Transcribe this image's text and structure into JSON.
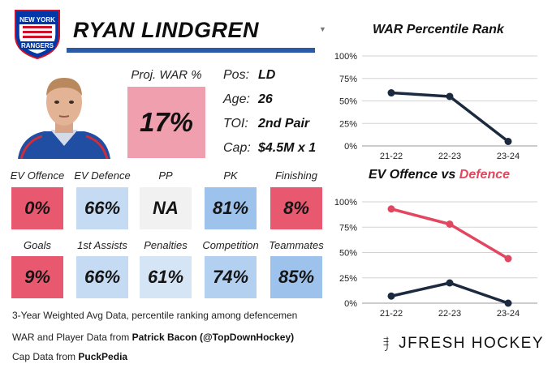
{
  "team": {
    "logo_line1": "NEW YORK",
    "logo_line2": "RANGERS",
    "primary": "#0038a8",
    "secondary": "#ce1126"
  },
  "player": {
    "name": "RYAN LINDGREN",
    "proj_war_label": "Proj. WAR %",
    "proj_war": "17%",
    "info": [
      {
        "label": "Pos:",
        "value": "LD"
      },
      {
        "label": "Age:",
        "value": "26"
      },
      {
        "label": "TOI:",
        "value": "2nd Pair"
      },
      {
        "label": "Cap:",
        "value": "$4.5M x 1"
      }
    ]
  },
  "stats": [
    {
      "label": "EV Offence",
      "value": "0%",
      "color": "#e8586f"
    },
    {
      "label": "EV Defence",
      "value": "66%",
      "color": "#c5dbf3"
    },
    {
      "label": "PP",
      "value": "NA",
      "color": "#f1f1f1"
    },
    {
      "label": "PK",
      "value": "81%",
      "color": "#9dc3ec"
    },
    {
      "label": "Finishing",
      "value": "8%",
      "color": "#e8586f"
    },
    {
      "label": "Goals",
      "value": "9%",
      "color": "#e8586f"
    },
    {
      "label": "1st Assists",
      "value": "66%",
      "color": "#c5dbf3"
    },
    {
      "label": "Penalties",
      "value": "61%",
      "color": "#d6e5f6"
    },
    {
      "label": "Competition",
      "value": "74%",
      "color": "#b3d0f0"
    },
    {
      "label": "Teammates",
      "value": "85%",
      "color": "#9dc3ec"
    }
  ],
  "notes": {
    "line1": "3-Year Weighted Avg Data, percentile ranking among defencemen",
    "line2_prefix": "WAR and Player Data from ",
    "line2_bold": "Patrick Bacon (@TopDownHockey)",
    "line3_prefix": "Cap Data from ",
    "line3_bold": "PuckPedia"
  },
  "brand": {
    "text": "JFRESH HOCKEY"
  },
  "chart_data": [
    {
      "type": "line",
      "title": "WAR Percentile Rank",
      "categories": [
        "21-22",
        "22-23",
        "23-24"
      ],
      "ylim": [
        0,
        100
      ],
      "yticks": [
        "0%",
        "25%",
        "50%",
        "75%",
        "100%"
      ],
      "grid": true,
      "series": [
        {
          "values": [
            59,
            55,
            5
          ],
          "color": "#1c2a40"
        }
      ]
    },
    {
      "type": "line",
      "title_part1": "EV Offence",
      "title_part2": " vs ",
      "title_part3": "Defence",
      "categories": [
        "21-22",
        "22-23",
        "23-24"
      ],
      "ylim": [
        0,
        100
      ],
      "yticks": [
        "0%",
        "25%",
        "50%",
        "75%",
        "100%"
      ],
      "grid": true,
      "series": [
        {
          "values": [
            93,
            78,
            44
          ],
          "color": "#e3475f"
        },
        {
          "values": [
            7,
            20,
            0
          ],
          "color": "#1c2a40"
        }
      ]
    }
  ]
}
